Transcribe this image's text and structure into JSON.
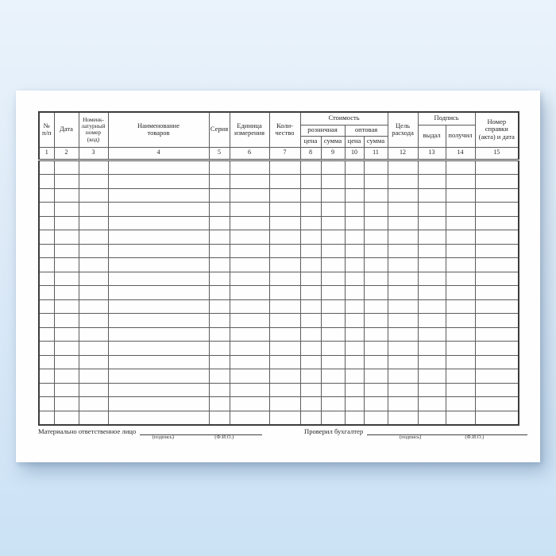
{
  "table": {
    "headers": {
      "npp": "№\nп/п",
      "date": "Дата",
      "nomenclature": "Номенк-\nлатурный\nномер (код)",
      "goods_name": "Наименование\nтоваров",
      "series": "Серия",
      "unit": "Единица\nизмерения",
      "quantity": "Коли-\nчество",
      "cost": "Стоимость",
      "retail": "розничная",
      "wholesale": "оптовая",
      "price": "цена",
      "sum": "сумма",
      "purpose": "Цель\nрасхода",
      "signature": "Подпись",
      "issued": "выдал",
      "received": "получил",
      "ref_number": "Номер\nсправки\n(акта) и дата"
    },
    "column_numbers": [
      "1",
      "2",
      "3",
      "4",
      "5",
      "6",
      "7",
      "8",
      "9",
      "10",
      "11",
      "12",
      "13",
      "14",
      "15"
    ],
    "empty_row_count": 19
  },
  "footer": {
    "left": {
      "label": "Материально ответственное лицо",
      "sig": "(подпись)",
      "name": "(Ф.И.О.)"
    },
    "right": {
      "label": "Проверил бухгалтер",
      "sig": "(подпись)",
      "name": "(Ф.И.О.)"
    }
  },
  "colors": {
    "background_top": "#eaf3fb",
    "background_bottom": "#cbe2f5",
    "paper": "#fefefe",
    "line": "#5c5c5c",
    "text": "#262626"
  }
}
